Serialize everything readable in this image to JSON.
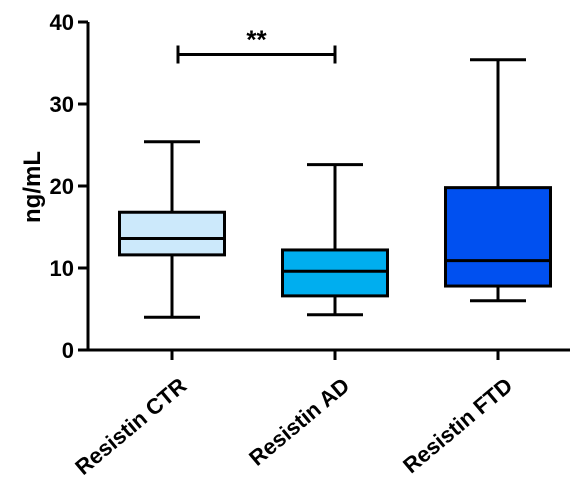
{
  "chart_data": {
    "type": "box",
    "ylabel": "ng/mL",
    "ylim": [
      0,
      40
    ],
    "yticks": [
      0,
      10,
      20,
      30,
      40
    ],
    "categories": [
      "Resistin CTR",
      "Resistin AD",
      "Resistin FTD"
    ],
    "boxes": [
      {
        "name": "Resistin CTR",
        "min": 4.0,
        "q1": 11.6,
        "median": 13.6,
        "q3": 16.8,
        "max": 25.4,
        "color": "#cce9fb"
      },
      {
        "name": "Resistin AD",
        "min": 4.3,
        "q1": 6.6,
        "median": 9.6,
        "q3": 12.2,
        "max": 22.6,
        "color": "#00aeef"
      },
      {
        "name": "Resistin FTD",
        "min": 6.0,
        "q1": 7.8,
        "median": 10.9,
        "q3": 19.8,
        "max": 35.4,
        "color": "#0050f0"
      }
    ],
    "annotations": [
      {
        "text": "**",
        "from": "Resistin CTR",
        "to": "Resistin AD",
        "y": 37.5
      }
    ],
    "grid": false,
    "legend": "none"
  }
}
